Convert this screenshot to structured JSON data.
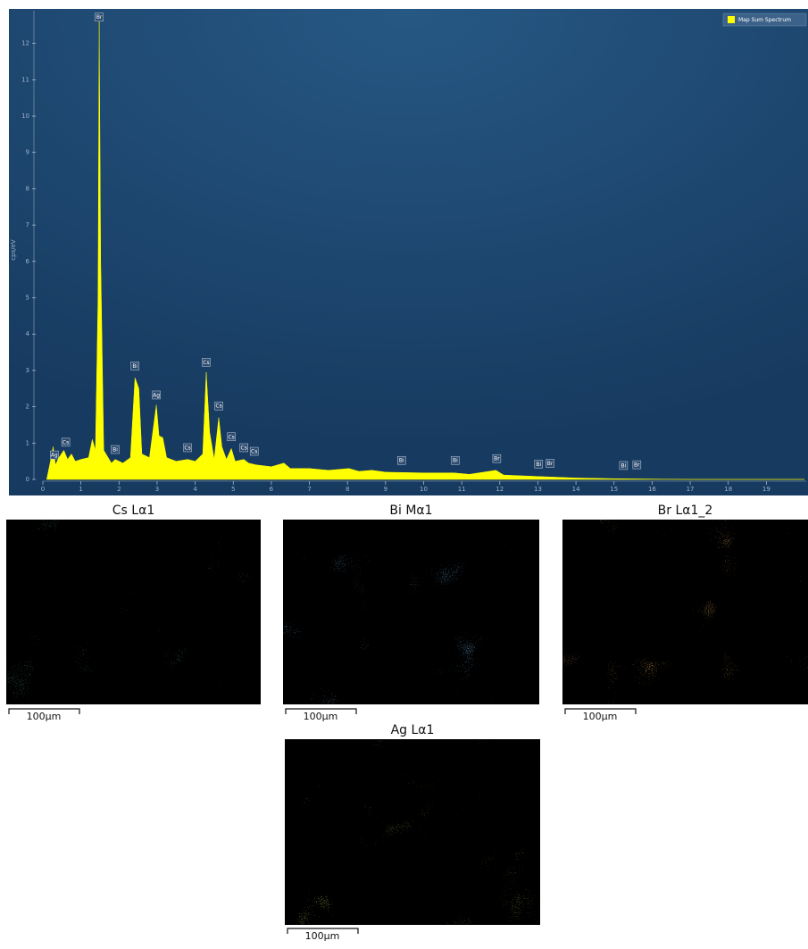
{
  "chart_data": {
    "type": "area",
    "y_label": "cps/eV",
    "xlim": [
      0,
      20
    ],
    "xticks": [
      0,
      1,
      2,
      3,
      4,
      5,
      6,
      7,
      8,
      9,
      10,
      11,
      12,
      13,
      14,
      15,
      16,
      17,
      18,
      19
    ],
    "ylim": [
      0,
      12.9
    ],
    "yticks": [
      0,
      1,
      2,
      3,
      4,
      5,
      6,
      7,
      8,
      9,
      10,
      11,
      12
    ],
    "legend": "top-right",
    "x": [
      0.1,
      0.2,
      0.27,
      0.33,
      0.42,
      0.55,
      0.65,
      0.75,
      0.85,
      1.0,
      1.2,
      1.3,
      1.38,
      1.45,
      1.48,
      1.52,
      1.6,
      1.8,
      1.9,
      2.1,
      2.3,
      2.42,
      2.52,
      2.6,
      2.8,
      2.98,
      3.05,
      3.15,
      3.25,
      3.5,
      3.8,
      4.0,
      4.2,
      4.29,
      4.38,
      4.5,
      4.62,
      4.7,
      4.82,
      4.95,
      5.05,
      5.28,
      5.4,
      5.6,
      6.0,
      6.33,
      6.5,
      7.0,
      7.5,
      8.04,
      8.3,
      8.64,
      9.0,
      10.0,
      10.8,
      11.2,
      11.9,
      12.1,
      13,
      14,
      15,
      16,
      17,
      20
    ],
    "series": [
      {
        "name": "Map Sum Spectrum",
        "color": "#ffff00",
        "values": [
          0,
          0.5,
          0.9,
          0.4,
          0.6,
          0.8,
          0.55,
          0.7,
          0.5,
          0.55,
          0.6,
          1.1,
          0.8,
          5,
          12.6,
          6,
          0.8,
          0.45,
          0.55,
          0.45,
          0.6,
          2.8,
          2.5,
          0.7,
          0.6,
          2.05,
          1.2,
          1.15,
          0.6,
          0.5,
          0.55,
          0.5,
          0.7,
          2.95,
          1.3,
          0.55,
          1.7,
          0.9,
          0.55,
          0.85,
          0.5,
          0.55,
          0.45,
          0.4,
          0.35,
          0.45,
          0.3,
          0.3,
          0.25,
          0.3,
          0.22,
          0.25,
          0.2,
          0.18,
          0.18,
          0.14,
          0.25,
          0.12,
          0.08,
          0.04,
          0.02,
          0.01,
          0,
          0
        ]
      }
    ],
    "peak_labels": [
      {
        "label": "Br",
        "x": 1.48,
        "y": 12.6
      },
      {
        "label": "Ag",
        "x": 0.3,
        "y": 0.55
      },
      {
        "label": "Cs",
        "x": 0.6,
        "y": 0.9
      },
      {
        "label": "Bi",
        "x": 1.9,
        "y": 0.7
      },
      {
        "label": "Bi",
        "x": 2.42,
        "y": 3.0
      },
      {
        "label": "Ag",
        "x": 2.98,
        "y": 2.2
      },
      {
        "label": "Cs",
        "x": 3.8,
        "y": 0.75
      },
      {
        "label": "Cs",
        "x": 4.29,
        "y": 3.1
      },
      {
        "label": "Cs",
        "x": 4.62,
        "y": 1.9
      },
      {
        "label": "Cs",
        "x": 4.95,
        "y": 1.05
      },
      {
        "label": "Cs",
        "x": 5.28,
        "y": 0.75
      },
      {
        "label": "Cs",
        "x": 5.55,
        "y": 0.65
      },
      {
        "label": "Bi",
        "x": 9.42,
        "y": 0.4
      },
      {
        "label": "Bi",
        "x": 10.83,
        "y": 0.4
      },
      {
        "label": "Br",
        "x": 11.92,
        "y": 0.45
      },
      {
        "label": "Bi",
        "x": 13.02,
        "y": 0.3
      },
      {
        "label": "Br",
        "x": 13.32,
        "y": 0.32
      },
      {
        "label": "Bi",
        "x": 15.25,
        "y": 0.26
      },
      {
        "label": "Br",
        "x": 15.6,
        "y": 0.28
      }
    ]
  },
  "element_maps": [
    {
      "title": "Cs Lα1",
      "color": "#1fa35e",
      "scale_bar": "100µm"
    },
    {
      "title": "Bi Mα1",
      "color": "#2c6fc4",
      "scale_bar": "100µm"
    },
    {
      "title": "Br Lα1_2",
      "color": "#e2721c",
      "scale_bar": "100µm"
    },
    {
      "title": "Ag Lα1",
      "color": "#86ad1f",
      "scale_bar": "100µm"
    }
  ]
}
